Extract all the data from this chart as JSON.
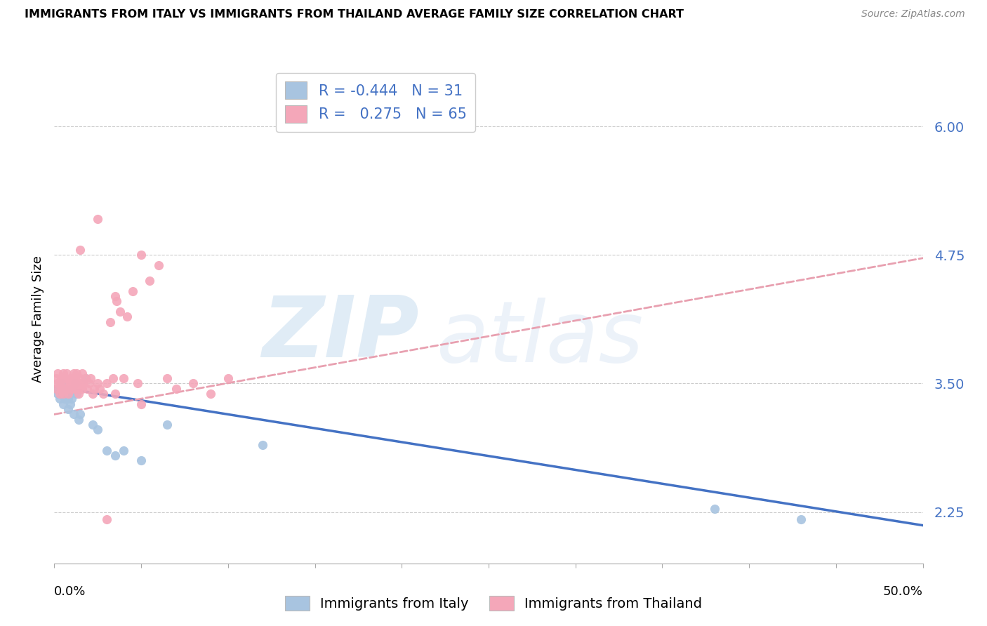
{
  "title": "IMMIGRANTS FROM ITALY VS IMMIGRANTS FROM THAILAND AVERAGE FAMILY SIZE CORRELATION CHART",
  "source": "Source: ZipAtlas.com",
  "ylabel": "Average Family Size",
  "ytick_values": [
    2.25,
    3.5,
    4.75,
    6.0
  ],
  "ytick_labels": [
    "2.25",
    "3.50",
    "4.75",
    "6.00"
  ],
  "xlim": [
    0.0,
    0.5
  ],
  "ylim": [
    1.75,
    6.5
  ],
  "italy_color": "#a8c4e0",
  "thailand_color": "#f4a7b9",
  "italy_line_color": "#4472c4",
  "thailand_line_color": "#e8a0b0",
  "italy_R": "-0.444",
  "italy_N": "31",
  "thailand_R": "0.275",
  "thailand_N": "65",
  "italy_scatter_x": [
    0.001,
    0.002,
    0.003,
    0.004,
    0.005,
    0.005,
    0.006,
    0.006,
    0.007,
    0.008,
    0.008,
    0.009,
    0.009,
    0.01,
    0.01,
    0.011,
    0.012,
    0.013,
    0.014,
    0.015,
    0.018,
    0.022,
    0.025,
    0.03,
    0.035,
    0.04,
    0.05,
    0.065,
    0.12,
    0.38,
    0.43
  ],
  "italy_scatter_y": [
    3.45,
    3.4,
    3.35,
    3.5,
    3.3,
    3.4,
    3.45,
    3.35,
    3.4,
    3.35,
    3.25,
    3.4,
    3.3,
    3.45,
    3.35,
    3.2,
    3.5,
    3.4,
    3.15,
    3.2,
    3.55,
    3.1,
    3.05,
    2.85,
    2.8,
    2.85,
    2.75,
    3.1,
    2.9,
    2.28,
    2.18
  ],
  "thailand_scatter_x": [
    0.001,
    0.001,
    0.002,
    0.002,
    0.003,
    0.003,
    0.004,
    0.004,
    0.005,
    0.005,
    0.006,
    0.006,
    0.007,
    0.007,
    0.008,
    0.008,
    0.009,
    0.009,
    0.01,
    0.01,
    0.011,
    0.011,
    0.012,
    0.012,
    0.013,
    0.013,
    0.014,
    0.014,
    0.015,
    0.015,
    0.016,
    0.016,
    0.017,
    0.018,
    0.019,
    0.02,
    0.021,
    0.022,
    0.023,
    0.025,
    0.026,
    0.028,
    0.03,
    0.032,
    0.034,
    0.035,
    0.036,
    0.038,
    0.04,
    0.042,
    0.045,
    0.048,
    0.05,
    0.055,
    0.06,
    0.065,
    0.07,
    0.08,
    0.09,
    0.1,
    0.015,
    0.025,
    0.035,
    0.05,
    0.03
  ],
  "thailand_scatter_y": [
    3.45,
    3.55,
    3.5,
    3.6,
    3.4,
    3.5,
    3.55,
    3.45,
    3.6,
    3.4,
    3.45,
    3.55,
    3.5,
    3.6,
    3.45,
    3.4,
    3.55,
    3.5,
    3.45,
    3.55,
    3.5,
    3.6,
    3.45,
    3.55,
    3.6,
    3.5,
    3.45,
    3.4,
    3.55,
    3.5,
    3.45,
    3.6,
    3.5,
    3.55,
    3.45,
    3.5,
    3.55,
    3.4,
    3.45,
    3.5,
    3.45,
    3.4,
    3.5,
    4.1,
    3.55,
    3.4,
    4.3,
    4.2,
    3.55,
    4.15,
    4.4,
    3.5,
    3.3,
    4.5,
    4.65,
    3.55,
    3.45,
    3.5,
    3.4,
    3.55,
    4.8,
    5.1,
    4.35,
    4.75,
    2.18
  ],
  "watermark_zip": "ZIP",
  "watermark_atlas": "atlas",
  "italy_trend_x0": 0.0,
  "italy_trend_x1": 0.5,
  "italy_trend_y0": 3.47,
  "italy_trend_y1": 2.12,
  "thailand_trend_x0": 0.0,
  "thailand_trend_x1": 0.5,
  "thailand_trend_y0": 3.2,
  "thailand_trend_y1": 4.72,
  "xtick_positions": [
    0.0,
    0.05,
    0.1,
    0.15,
    0.2,
    0.25,
    0.3,
    0.35,
    0.4,
    0.45,
    0.5
  ],
  "label_color": "#4472c4",
  "grid_color": "#cccccc"
}
